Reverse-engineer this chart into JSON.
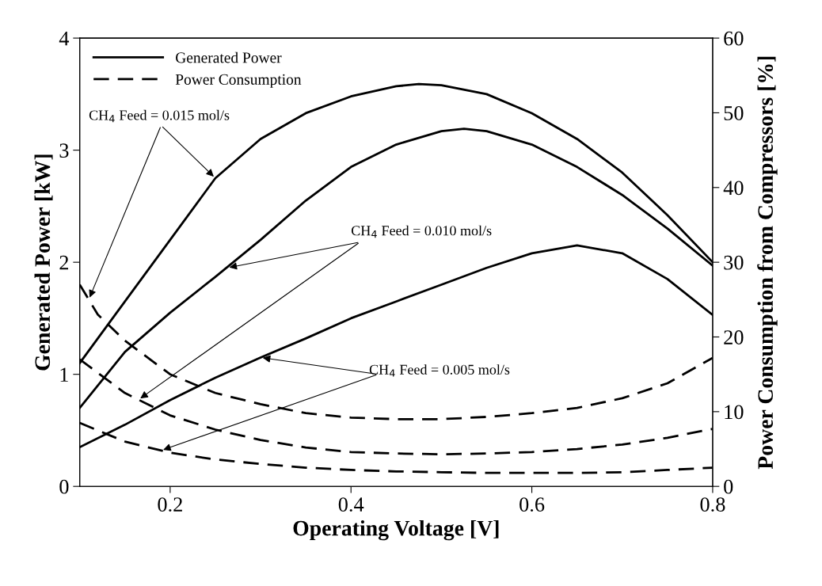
{
  "chart_data": {
    "type": "line",
    "xlabel": "Operating Voltage [V]",
    "ylabel": "Generated Power [kW]",
    "y2label": "Power Consumption from Compressors [%]",
    "xlim": [
      0.1,
      0.8
    ],
    "xticks": [
      0.2,
      0.4,
      0.6,
      0.8
    ],
    "ylim": [
      0,
      4
    ],
    "yticks": [
      0,
      1,
      2,
      3,
      4
    ],
    "y2lim": [
      0,
      60
    ],
    "y2ticks": [
      0,
      10,
      20,
      30,
      40,
      50,
      60
    ],
    "grid": false,
    "legend": "top left",
    "marker": "none",
    "series": [
      {
        "name": "Generated Power",
        "color": "#000000",
        "line_style": "solid",
        "x": [
          0.1,
          0.15,
          0.2,
          0.25,
          0.3,
          0.35,
          0.4,
          0.45,
          0.475,
          0.5,
          0.55,
          0.6,
          0.65,
          0.7,
          0.75,
          0.8
        ],
        "values": [
          1.1,
          1.65,
          2.2,
          2.75,
          3.1,
          3.33,
          3.48,
          3.57,
          3.59,
          3.58,
          3.5,
          3.33,
          3.1,
          2.8,
          2.42,
          2.0
        ]
      },
      {
        "color": "#000000",
        "line_style": "solid",
        "x": [
          0.1,
          0.15,
          0.2,
          0.25,
          0.3,
          0.35,
          0.4,
          0.45,
          0.5,
          0.525,
          0.55,
          0.6,
          0.65,
          0.7,
          0.75,
          0.8
        ],
        "values": [
          0.7,
          1.2,
          1.55,
          1.87,
          2.2,
          2.55,
          2.85,
          3.05,
          3.17,
          3.19,
          3.17,
          3.05,
          2.85,
          2.6,
          2.3,
          1.97
        ]
      },
      {
        "color": "#000000",
        "line_style": "solid",
        "x": [
          0.1,
          0.15,
          0.2,
          0.25,
          0.3,
          0.35,
          0.4,
          0.45,
          0.5,
          0.55,
          0.6,
          0.65,
          0.7,
          0.75,
          0.8
        ],
        "values": [
          0.35,
          0.55,
          0.77,
          0.97,
          1.15,
          1.32,
          1.5,
          1.65,
          1.8,
          1.95,
          2.08,
          2.15,
          2.08,
          1.85,
          1.53
        ]
      },
      {
        "name": "Power Consumption",
        "color": "#000000",
        "line_style": "dashed",
        "axis": "y2",
        "x": [
          0.1,
          0.12,
          0.15,
          0.2,
          0.25,
          0.3,
          0.35,
          0.4,
          0.45,
          0.5,
          0.55,
          0.6,
          0.65,
          0.7,
          0.75,
          0.8
        ],
        "values": [
          27,
          23,
          19.5,
          15,
          12.5,
          11,
          9.8,
          9.2,
          9.0,
          9.0,
          9.3,
          9.8,
          10.5,
          11.8,
          13.8,
          17.2
        ]
      },
      {
        "color": "#000000",
        "line_style": "dashed",
        "axis": "y2",
        "x": [
          0.1,
          0.15,
          0.2,
          0.25,
          0.3,
          0.35,
          0.4,
          0.45,
          0.5,
          0.55,
          0.6,
          0.65,
          0.7,
          0.75,
          0.8
        ],
        "values": [
          17,
          12.5,
          9.5,
          7.6,
          6.2,
          5.2,
          4.6,
          4.4,
          4.3,
          4.4,
          4.6,
          5.0,
          5.6,
          6.5,
          7.7
        ]
      },
      {
        "color": "#000000",
        "line_style": "dashed",
        "axis": "y2",
        "x": [
          0.1,
          0.15,
          0.2,
          0.25,
          0.3,
          0.35,
          0.4,
          0.45,
          0.5,
          0.55,
          0.6,
          0.65,
          0.7,
          0.75,
          0.8
        ],
        "values": [
          8.5,
          6.0,
          4.5,
          3.6,
          3.0,
          2.5,
          2.2,
          2.0,
          1.9,
          1.8,
          1.8,
          1.8,
          1.9,
          2.2,
          2.5
        ]
      }
    ],
    "annotations": [
      {
        "text": "CH$_{4}$ Feed = 0.015 mol/s",
        "x": 0.25,
        "y": 2.75
      },
      {
        "text": "CH$_{4}$ Feed = 0.010 mol/s",
        "x": 0.263,
        "y": 1.95
      },
      {
        "text": "CH$_{4}$ Feed = 0.005 mol/s",
        "x": 0.3,
        "y": 1.15
      }
    ]
  }
}
